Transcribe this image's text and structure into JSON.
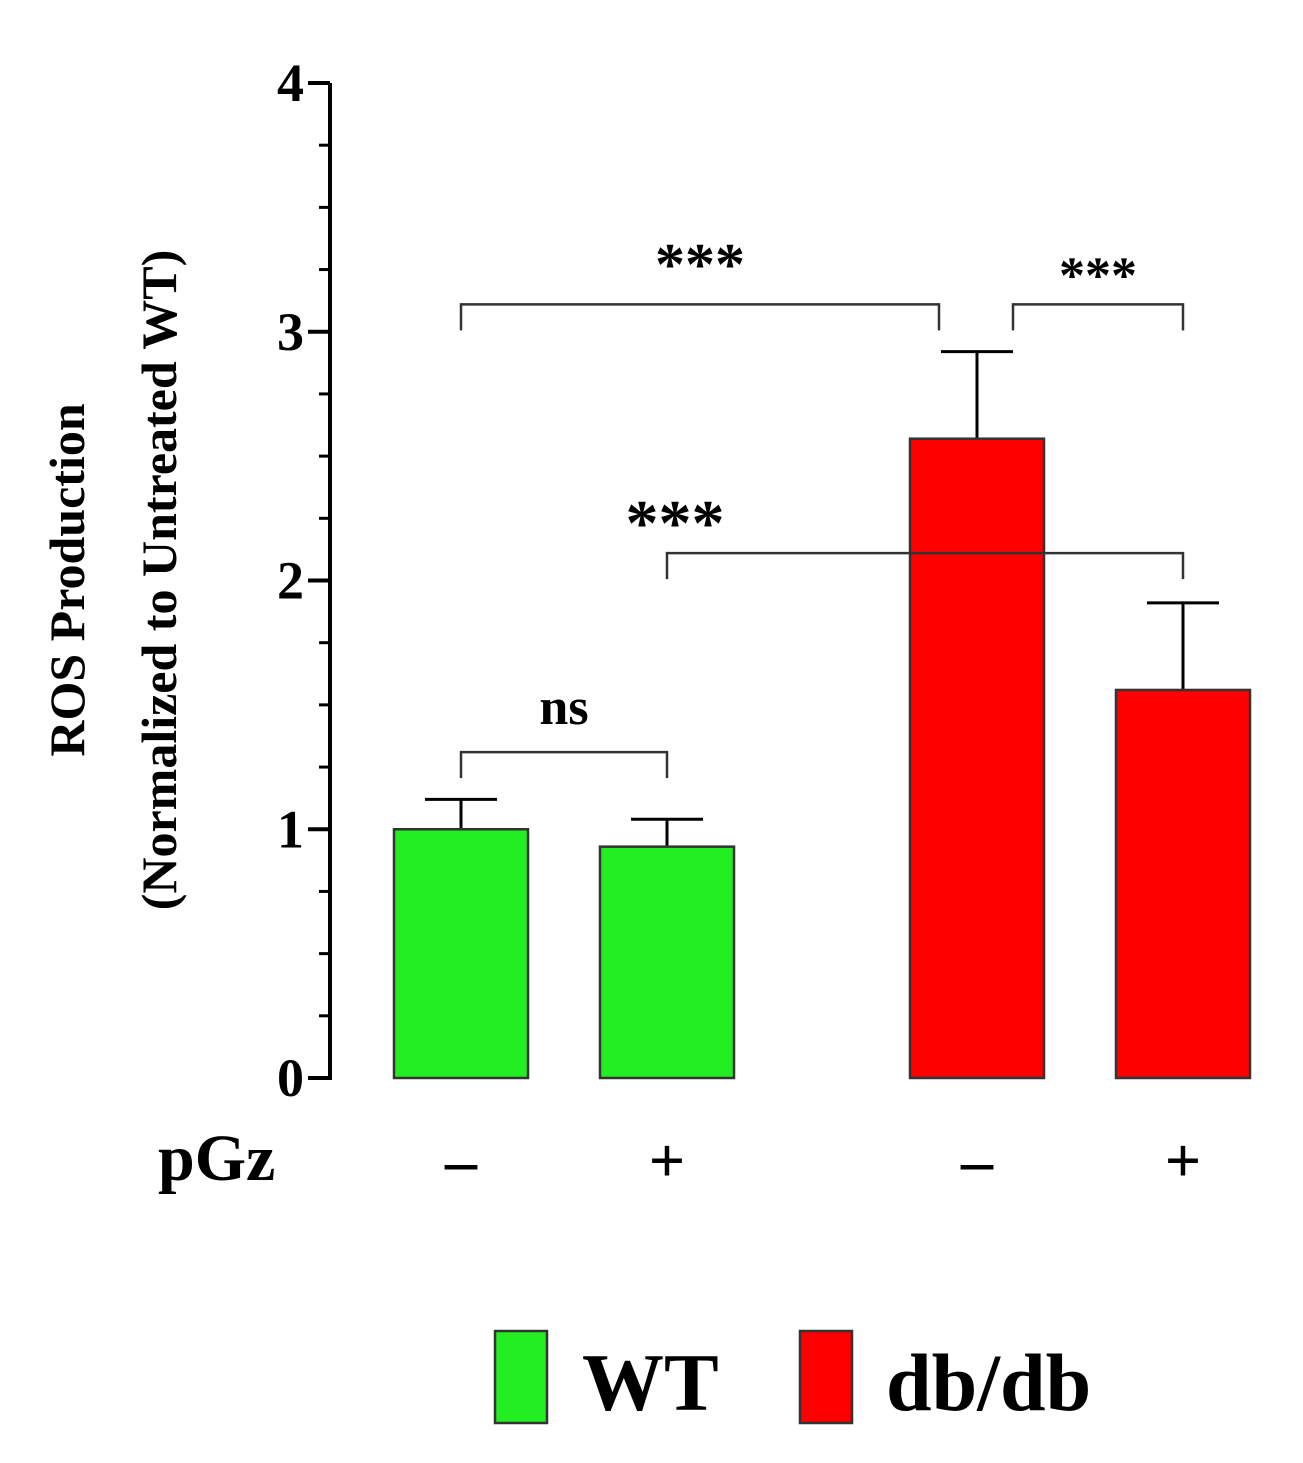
{
  "chart_data": {
    "type": "bar",
    "title": "",
    "ylabel_line1": "ROS Production",
    "ylabel_line2": "(Normalized to Untreated WT)",
    "ylim": [
      0,
      4
    ],
    "yticks": [
      "0",
      "1",
      "2",
      "3",
      "4"
    ],
    "grid": false,
    "row_label": "pGz",
    "bars": [
      {
        "group": "WT",
        "pgz": "–",
        "value": 1.0,
        "error": 0.12
      },
      {
        "group": "WT",
        "pgz": "+",
        "value": 0.93,
        "error": 0.11
      },
      {
        "group": "db/db",
        "pgz": "–",
        "value": 2.57,
        "error": 0.35
      },
      {
        "group": "db/db",
        "pgz": "+",
        "value": 1.56,
        "error": 0.35
      }
    ],
    "comparisons": [
      {
        "from": 0,
        "to": 1,
        "y": 1.31,
        "label": "ns"
      },
      {
        "from": 0,
        "to": 2,
        "y": 3.11,
        "label": "***"
      },
      {
        "from": 2,
        "to": 3,
        "y": 3.11,
        "label": "***"
      },
      {
        "from": 1,
        "to": 3,
        "y": 2.11,
        "label": "***"
      }
    ],
    "legend": {
      "position": "bottom",
      "items": [
        {
          "label": "WT",
          "color": "#22ee22"
        },
        {
          "label": "db/db",
          "color": "#ff0000"
        }
      ]
    },
    "colors": {
      "WT": "#22ee22",
      "db/db": "#ff0000"
    }
  }
}
